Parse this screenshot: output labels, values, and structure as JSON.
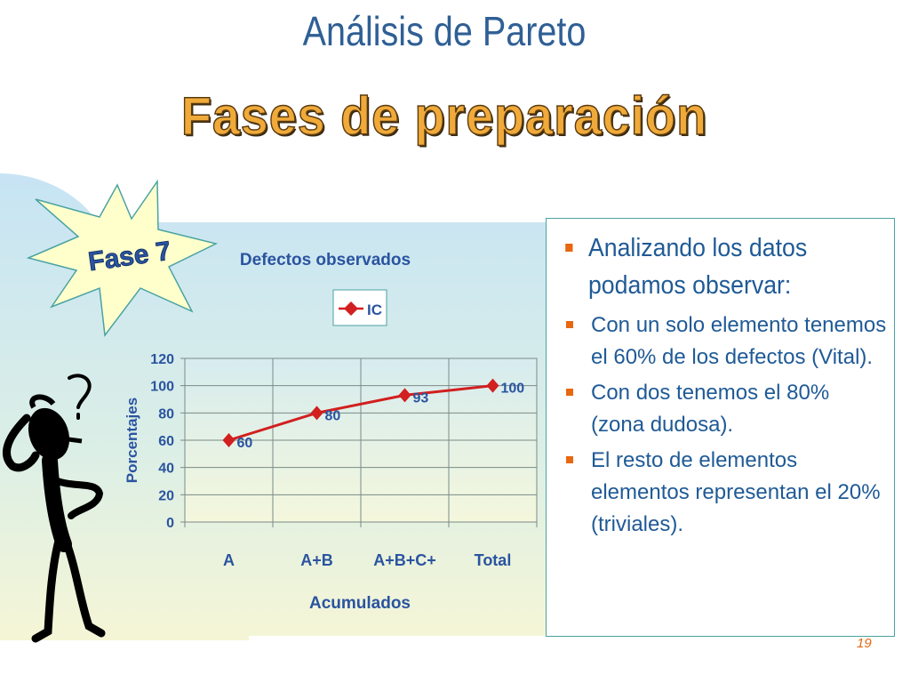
{
  "slide": {
    "title": "Análisis de Pareto",
    "subtitle": "Fases de preparación",
    "badge": "Fase 7",
    "page_number": "19"
  },
  "colors": {
    "title": "#2f5f95",
    "subtitle_fill": "#f0aa3a",
    "series_line": "#d21f1f",
    "bullet": "#e8670f",
    "body_text": "#1f5a96"
  },
  "bullets": [
    {
      "level": 1,
      "text": "Analizando los datos podamos observar:"
    },
    {
      "level": 2,
      "text": "Con un solo elemento tenemos el 60% de los defectos (Vital)."
    },
    {
      "level": 2,
      "text": "Con dos tenemos el 80% (zona dudosa)."
    },
    {
      "level": 2,
      "text": "El resto de elementos elementos representan el 20% (triviales)."
    }
  ],
  "chart_data": {
    "type": "line",
    "title": "Defectos observados",
    "xlabel": "Acumulados",
    "ylabel": "Porcentajes",
    "categories": [
      "A",
      "A+B",
      "A+B+C+",
      "Total"
    ],
    "series": [
      {
        "name": "IC",
        "values": [
          60,
          80,
          93,
          100
        ],
        "color": "#d21f1f",
        "marker": "diamond"
      }
    ],
    "data_labels": [
      "60",
      "80",
      "93",
      "100"
    ],
    "yticks": [
      "0",
      "20",
      "40",
      "60",
      "80",
      "100",
      "120"
    ],
    "ylim": [
      0,
      120
    ],
    "grid": true,
    "legend": "top-center"
  }
}
